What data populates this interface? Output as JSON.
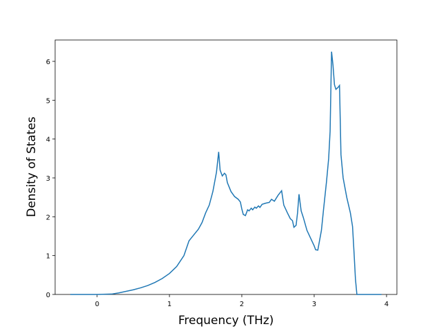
{
  "chart_data": {
    "type": "line",
    "x_label": "Frequency (THz)",
    "y_label": "Density of States",
    "x": [
      -0.37,
      0,
      0.2,
      0.3,
      0.4,
      0.5,
      0.6,
      0.7,
      0.8,
      0.9,
      1.0,
      1.1,
      1.2,
      1.27,
      1.3,
      1.4,
      1.45,
      1.5,
      1.55,
      1.6,
      1.65,
      1.68,
      1.7,
      1.73,
      1.76,
      1.78,
      1.8,
      1.85,
      1.9,
      1.95,
      1.98,
      2.0,
      2.02,
      2.05,
      2.08,
      2.1,
      2.13,
      2.15,
      2.18,
      2.2,
      2.23,
      2.25,
      2.28,
      2.33,
      2.38,
      2.41,
      2.45,
      2.5,
      2.55,
      2.58,
      2.63,
      2.67,
      2.7,
      2.72,
      2.75,
      2.77,
      2.79,
      2.82,
      2.85,
      2.9,
      2.95,
      3.0,
      3.02,
      3.05,
      3.1,
      3.13,
      3.17,
      3.2,
      3.22,
      3.24,
      3.26,
      3.28,
      3.3,
      3.33,
      3.35,
      3.37,
      3.4,
      3.45,
      3.5,
      3.53,
      3.55,
      3.57,
      3.59,
      3.93
    ],
    "series": [
      {
        "color": "#1f77b4",
        "values": [
          0,
          0,
          0.01,
          0.04,
          0.08,
          0.12,
          0.17,
          0.23,
          0.31,
          0.41,
          0.54,
          0.72,
          1.0,
          1.38,
          1.45,
          1.68,
          1.85,
          2.1,
          2.3,
          2.65,
          3.15,
          3.67,
          3.2,
          3.05,
          3.12,
          3.08,
          2.88,
          2.65,
          2.52,
          2.45,
          2.38,
          2.2,
          2.06,
          2.03,
          2.18,
          2.15,
          2.22,
          2.18,
          2.25,
          2.22,
          2.28,
          2.24,
          2.32,
          2.35,
          2.37,
          2.45,
          2.4,
          2.55,
          2.67,
          2.3,
          2.1,
          1.95,
          1.9,
          1.73,
          1.78,
          2.1,
          2.58,
          2.15,
          1.98,
          1.65,
          1.45,
          1.25,
          1.15,
          1.14,
          1.65,
          2.2,
          2.9,
          3.5,
          4.2,
          6.25,
          5.9,
          5.4,
          5.28,
          5.33,
          5.38,
          3.6,
          3.0,
          2.5,
          2.1,
          1.75,
          1.1,
          0.4,
          0,
          0
        ]
      }
    ],
    "xlim": [
      -0.58,
      4.143
    ],
    "ylim": [
      0,
      6.55
    ],
    "xticks": [
      0,
      1,
      2,
      3,
      4
    ],
    "yticks": [
      0,
      1,
      2,
      3,
      4,
      5,
      6
    ]
  }
}
